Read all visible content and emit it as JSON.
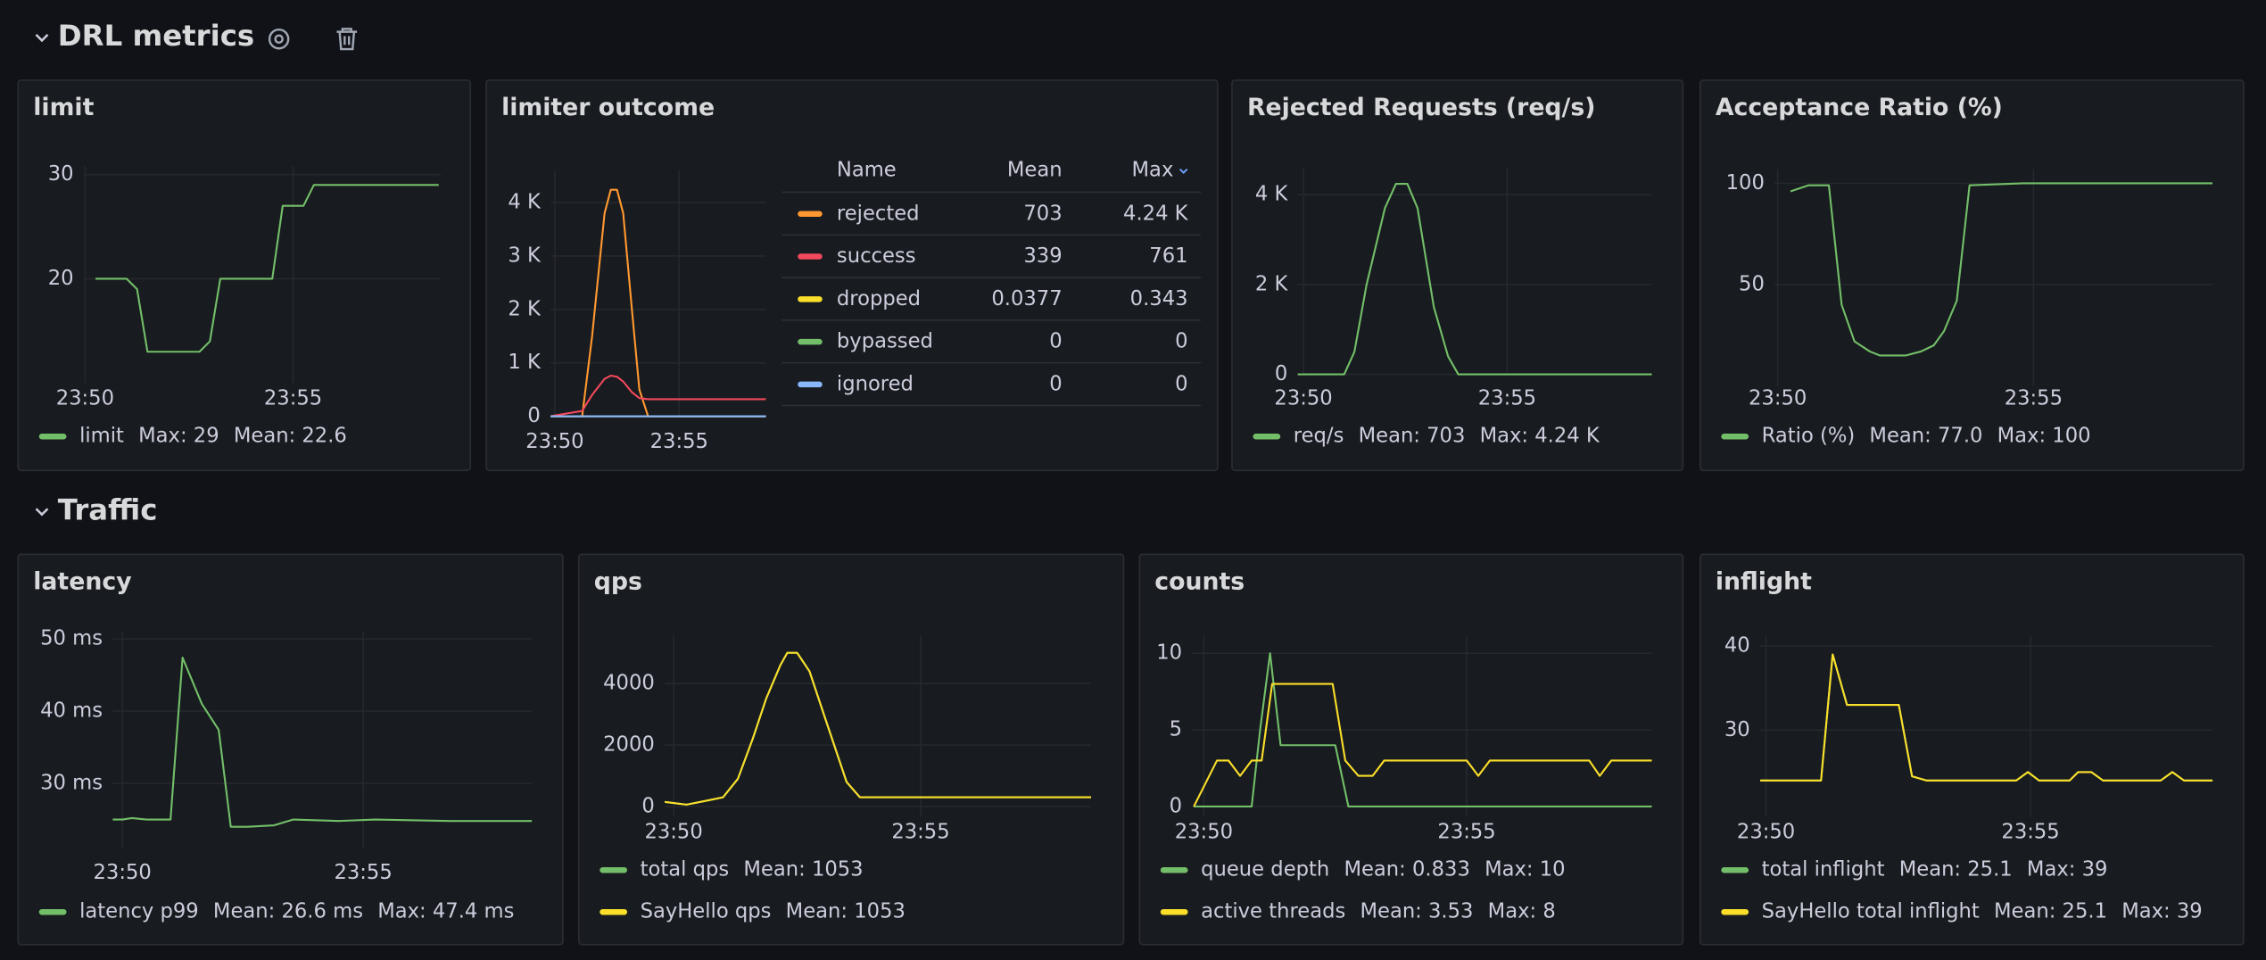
{
  "rows": [
    {
      "title": "DRL metrics"
    },
    {
      "title": "Traffic"
    }
  ],
  "chart_data": [
    {
      "type": "line",
      "title": "limit",
      "x": [
        50.25,
        51,
        51.25,
        51.5,
        52.75,
        53,
        53.25,
        54.5,
        54.75,
        55.25,
        55.5,
        58.5
      ],
      "series": [
        {
          "name": "limit",
          "color": "#73bf69",
          "values": [
            20,
            20,
            19,
            13,
            13,
            14,
            20,
            20,
            27,
            27,
            29,
            29
          ],
          "stats": [
            "Max: 29",
            "Mean: 22.6"
          ]
        }
      ],
      "xlim": [
        49.97,
        58.55
      ],
      "xticks": [
        {
          "value": 50,
          "label": "23:50"
        },
        {
          "value": 55,
          "label": "23:55"
        }
      ],
      "ylim": [
        10,
        30.8
      ],
      "yticks": [
        20,
        30
      ],
      "grid": true,
      "legend": "list"
    },
    {
      "type": "line",
      "title": "limiter outcome",
      "x": [
        49.83,
        51.1,
        51.5,
        52,
        52.25,
        52.5,
        52.75,
        53.1,
        53.4,
        53.75,
        58.49
      ],
      "series": [
        {
          "name": "rejected",
          "color": "#ff9830",
          "values": [
            0,
            0,
            1500,
            3800,
            4240,
            4240,
            3800,
            2000,
            500,
            0,
            0
          ],
          "stats": [
            "703",
            "4.24 K"
          ]
        },
        {
          "name": "success",
          "color": "#f2495c",
          "values": [
            0,
            100,
            400,
            700,
            761,
            740,
            650,
            450,
            340,
            320,
            320
          ],
          "stats": [
            "339",
            "761"
          ]
        },
        {
          "name": "dropped",
          "color": "#fade2a",
          "values": [
            0,
            0,
            0,
            0,
            0.343,
            0.2,
            0,
            0,
            0,
            0,
            0
          ],
          "stats": [
            "0.0377",
            "0.343"
          ]
        },
        {
          "name": "bypassed",
          "color": "#73bf69",
          "values": [
            0,
            0,
            0,
            0,
            0,
            0,
            0,
            0,
            0,
            0,
            0
          ],
          "stats": [
            "0",
            "0"
          ]
        },
        {
          "name": "ignored",
          "color": "#8ab8ff",
          "values": [
            0,
            0,
            0,
            0,
            0,
            0,
            0,
            0,
            0,
            0,
            0
          ],
          "stats": [
            "0",
            "0"
          ]
        }
      ],
      "legend_columns": [
        "Name",
        "Mean",
        "Max"
      ],
      "xlim": [
        49.83,
        58.49
      ],
      "xticks": [
        {
          "value": 50,
          "label": "23:50"
        },
        {
          "value": 55,
          "label": "23:55"
        }
      ],
      "ylim": [
        0,
        4600
      ],
      "yticks": [
        0,
        {
          "value": 1000,
          "label": "1 K"
        },
        {
          "value": 2000,
          "label": "2 K"
        },
        {
          "value": 3000,
          "label": "3 K"
        },
        {
          "value": 4000,
          "label": "4 K"
        }
      ],
      "grid": true,
      "legend": "table"
    },
    {
      "type": "line",
      "title": "Rejected Requests (req/s)",
      "x": [
        49.86,
        51,
        51.25,
        51.55,
        52,
        52.27,
        52.55,
        52.8,
        53.2,
        53.55,
        53.8,
        58.55
      ],
      "series": [
        {
          "name": "req/s",
          "color": "#73bf69",
          "values": [
            0,
            0,
            500,
            2000,
            3700,
            4240,
            4240,
            3700,
            1500,
            400,
            0,
            0
          ],
          "stats": [
            "Mean: 703",
            "Max: 4.24 K"
          ]
        }
      ],
      "xlim": [
        49.86,
        58.55
      ],
      "xticks": [
        {
          "value": 50,
          "label": "23:50"
        },
        {
          "value": 55,
          "label": "23:55"
        }
      ],
      "ylim": [
        0,
        4600
      ],
      "yticks": [
        0,
        {
          "value": 2000,
          "label": "2 K"
        },
        {
          "value": 4000,
          "label": "4 K"
        }
      ],
      "grid": true,
      "legend": "list"
    },
    {
      "type": "line",
      "title": "Acceptance Ratio (%)",
      "x": [
        50.25,
        50.6,
        51,
        51.25,
        51.5,
        51.8,
        52,
        52.5,
        52.8,
        53.05,
        53.25,
        53.5,
        53.75,
        54.8,
        58.5
      ],
      "series": [
        {
          "name": "Ratio (%)",
          "color": "#73bf69",
          "values": [
            96,
            99,
            99,
            40,
            22,
            17,
            15,
            15,
            17,
            20,
            27,
            42,
            99,
            100,
            100
          ],
          "stats": [
            "Mean: 77.0",
            "Max: 100"
          ]
        }
      ],
      "xlim": [
        49.94,
        58.5
      ],
      "xticks": [
        {
          "value": 50,
          "label": "23:50"
        },
        {
          "value": 55,
          "label": "23:55"
        }
      ],
      "ylim": [
        0,
        107
      ],
      "yticks": [
        50,
        100
      ],
      "grid": true,
      "legend": "list"
    },
    {
      "type": "line",
      "title": "latency",
      "x": [
        49.8,
        50,
        50.2,
        50.5,
        51,
        51.25,
        51.65,
        52,
        52.25,
        52.6,
        53.15,
        53.55,
        54.5,
        55.25,
        56.8,
        58.5
      ],
      "series": [
        {
          "name": "latency p99",
          "color": "#73bf69",
          "values": [
            25,
            25,
            25.2,
            25,
            25,
            47.4,
            41,
            37.4,
            24,
            24,
            24.2,
            25,
            24.8,
            25,
            24.8,
            24.8
          ],
          "stats": [
            "Mean: 26.6 ms",
            "Max: 47.4 ms"
          ]
        }
      ],
      "xlim": [
        49.8,
        58.5
      ],
      "xticks": [
        {
          "value": 50,
          "label": "23:50"
        },
        {
          "value": 55,
          "label": "23:55"
        }
      ],
      "ylim": [
        21,
        51
      ],
      "yticks": [
        {
          "value": 30,
          "label": "30 ms"
        },
        {
          "value": 40,
          "label": "40 ms"
        },
        {
          "value": 50,
          "label": "50 ms"
        }
      ],
      "grid": true,
      "legend": "list"
    },
    {
      "type": "line",
      "title": "qps",
      "x": [
        49.82,
        50.26,
        50.7,
        51,
        51.3,
        51.6,
        51.87,
        52.16,
        52.3,
        52.5,
        52.75,
        53.04,
        53.5,
        53.77,
        58.45
      ],
      "series": [
        {
          "name": "total qps",
          "color": "#73bf69",
          "values": [
            150,
            60,
            200,
            300,
            900,
            2200,
            3500,
            4600,
            5000,
            5000,
            4400,
            3000,
            800,
            300,
            300
          ],
          "stats": [
            "Mean: 1053"
          ]
        },
        {
          "name": "SayHello qps",
          "color": "#fade2a",
          "values": [
            150,
            60,
            200,
            300,
            900,
            2200,
            3500,
            4600,
            5000,
            5000,
            4400,
            3000,
            800,
            300,
            300
          ],
          "stats": [
            "Mean: 1053"
          ]
        }
      ],
      "xlim": [
        49.82,
        58.45
      ],
      "xticks": [
        {
          "value": 50,
          "label": "23:50"
        },
        {
          "value": 55,
          "label": "23:55"
        }
      ],
      "ylim": [
        -330,
        5550
      ],
      "yticks": [
        0,
        2000,
        4000
      ],
      "grid": true,
      "legend": "list"
    },
    {
      "type": "line",
      "title": "counts",
      "series": [
        {
          "name": "queue depth",
          "color": "#73bf69",
          "x": [
            49.81,
            50.91,
            51.07,
            51.26,
            51.46,
            52.5,
            52.75,
            58.52
          ],
          "values": [
            0,
            0,
            5,
            10,
            4,
            4,
            0,
            0
          ],
          "stats": [
            "Mean: 0.833",
            "Max: 10"
          ]
        },
        {
          "name": "active threads",
          "color": "#fade2a",
          "x": [
            49.81,
            50.25,
            50.47,
            50.69,
            50.91,
            51.1,
            51.3,
            52.45,
            52.69,
            52.94,
            53.21,
            53.43,
            55,
            55.22,
            55.44,
            57.33,
            57.53,
            57.75,
            58.52
          ],
          "values": [
            0,
            3,
            3,
            2,
            3,
            3,
            8,
            8,
            3,
            2,
            2,
            3,
            3,
            2,
            3,
            3,
            2,
            3,
            3
          ],
          "stats": [
            "Mean: 3.53",
            "Max: 8"
          ]
        }
      ],
      "xlim": [
        49.78,
        58.52
      ],
      "xticks": [
        {
          "value": 50,
          "label": "23:50"
        },
        {
          "value": 55,
          "label": "23:55"
        }
      ],
      "ylim": [
        -0.66,
        11.13
      ],
      "yticks": [
        0,
        5,
        10
      ],
      "grid": true,
      "legend": "list"
    },
    {
      "type": "line",
      "title": "inflight",
      "x": [
        49.89,
        51.04,
        51.26,
        51.53,
        52.51,
        52.76,
        53.03,
        54.73,
        54.95,
        55.16,
        55.74,
        55.9,
        56.15,
        56.37,
        57.46,
        57.68,
        57.9,
        58.44
      ],
      "series": [
        {
          "name": "total inflight",
          "color": "#73bf69",
          "values": [
            24,
            24,
            39,
            33,
            33,
            24.5,
            24,
            24,
            25,
            24,
            24,
            25,
            25,
            24,
            24,
            25,
            24,
            24
          ],
          "stats": [
            "Mean: 25.1",
            "Max: 39"
          ]
        },
        {
          "name": "SayHello total inflight",
          "color": "#fade2a",
          "values": [
            24,
            24,
            39,
            33,
            33,
            24.5,
            24,
            24,
            25,
            24,
            24,
            25,
            25,
            24,
            24,
            25,
            24,
            24
          ],
          "stats": [
            "Mean: 25.1",
            "Max: 39"
          ]
        }
      ],
      "xlim": [
        49.89,
        58.44
      ],
      "xticks": [
        {
          "value": 50,
          "label": "23:50"
        },
        {
          "value": 55,
          "label": "23:55"
        }
      ],
      "ylim": [
        19.7,
        41.2
      ],
      "yticks": [
        30,
        40
      ],
      "grid": true,
      "legend": "list"
    }
  ]
}
